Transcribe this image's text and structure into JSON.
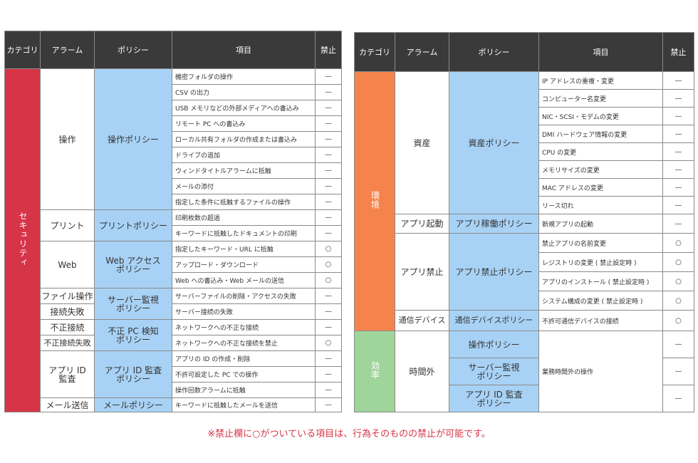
{
  "headers": {
    "category": "カテゴリ",
    "alarm": "アラーム",
    "policy": "ポリシー",
    "item": "項目",
    "ban": "禁止"
  },
  "left": {
    "category": "セキュリティ",
    "alarms": {
      "operation": "操作",
      "print": "プリント",
      "web": "Web",
      "file_op": "ファイル操作",
      "conn_fail": "接続失敗",
      "illegal_conn": "不正接続",
      "illegal_conn_fail": "不正接続失敗",
      "appid": "アプリ ID 監査",
      "mail": "メール送信"
    },
    "policies": {
      "operation": "操作ポリシー",
      "print": "プリントポリシー",
      "web": "Web アクセスポリシー",
      "server": "サーバー監視ポリシー",
      "illegal_pc": "不正 PC 検知ポリシー",
      "appid": "アプリ ID 監査ポリシー",
      "mail": "メールポリシー"
    },
    "rows": [
      {
        "item": "機密フォルダの操作",
        "ban": "—"
      },
      {
        "item": "CSV の出力",
        "ban": "—"
      },
      {
        "item": "USB メモリなどの外部メディアへの書込み",
        "ban": "—"
      },
      {
        "item": "リモート PC への書込み",
        "ban": "—"
      },
      {
        "item": "ローカル共有フォルダの作成または書込み",
        "ban": "—"
      },
      {
        "item": "ドライブの追加",
        "ban": "—"
      },
      {
        "item": "ウィンドタイトルアラームに抵触",
        "ban": "—"
      },
      {
        "item": "メールの添付",
        "ban": "—"
      },
      {
        "item": "指定した条件に抵触するファイルの操作",
        "ban": "—"
      },
      {
        "item": "印刷枚数の超過",
        "ban": "—"
      },
      {
        "item": "キーワードに抵触したドキュメントの印刷",
        "ban": "—"
      },
      {
        "item": "指定したキーワード・URL に抵触",
        "ban": "○"
      },
      {
        "item": "アップロード・ダウンロード",
        "ban": "○"
      },
      {
        "item": "Web への書込み・Web メールの送信",
        "ban": "○"
      },
      {
        "item": "サーバーファイルの削除・アクセスの失敗",
        "ban": "—"
      },
      {
        "item": "サーバー接続の失敗",
        "ban": "—"
      },
      {
        "item": "ネットワークへの不正な接続",
        "ban": "—"
      },
      {
        "item": "ネットワークへの不正な接続を禁止",
        "ban": "○"
      },
      {
        "item": "アプリの ID の作成・削除",
        "ban": "—"
      },
      {
        "item": "不許可設定した PC での操作",
        "ban": "—"
      },
      {
        "item": "操作回数アラームに抵触",
        "ban": "—"
      },
      {
        "item": "キーワードに抵触したメールを送信",
        "ban": "—"
      }
    ]
  },
  "right": {
    "categories": {
      "env": "環境",
      "eff": "効率"
    },
    "alarms": {
      "asset": "資産",
      "app_start": "アプリ起動",
      "app_ban": "アプリ禁止",
      "device": "通信デバイス",
      "offhours": "時間外"
    },
    "policies": {
      "asset": "資産ポリシー",
      "app_run": "アプリ稼働ポリシー",
      "app_ban": "アプリ禁止ポリシー",
      "device": "通信デバイスポリシー",
      "operation": "操作ポリシー",
      "server": "サーバー監視ポリシー",
      "appid": "アプリ ID 監査ポリシー"
    },
    "rows": [
      {
        "item": "IP アドレスの重複・変更",
        "ban": "—"
      },
      {
        "item": "コンピューター名変更",
        "ban": "—"
      },
      {
        "item": "NIC・SCSI・モデムの変更",
        "ban": "—"
      },
      {
        "item": "DMI ハードウェア情報の変更",
        "ban": "—"
      },
      {
        "item": "CPU の変更",
        "ban": "—"
      },
      {
        "item": "メモリサイズの変更",
        "ban": "—"
      },
      {
        "item": "MAC アドレスの変更",
        "ban": "—"
      },
      {
        "item": "リース切れ",
        "ban": "—"
      },
      {
        "item": "新規アプリの起動",
        "ban": "—"
      },
      {
        "item": "禁止アプリの名前変更",
        "ban": "○"
      },
      {
        "item": "レジストリの変更 ( 禁止設定時 )",
        "ban": "○"
      },
      {
        "item": "アプリのインストール ( 禁止設定時 )",
        "ban": "○"
      },
      {
        "item": "システム構成の変更 ( 禁止設定時 )",
        "ban": "○"
      },
      {
        "item": "不許可通信デバイスの接続",
        "ban": "○"
      }
    ],
    "offhours_item": "業務時間外の操作",
    "offhours_bans": [
      "—",
      "—",
      "—"
    ]
  },
  "note": "※禁止欄に○がついている項目は、行為そのものの禁止が可能です。"
}
